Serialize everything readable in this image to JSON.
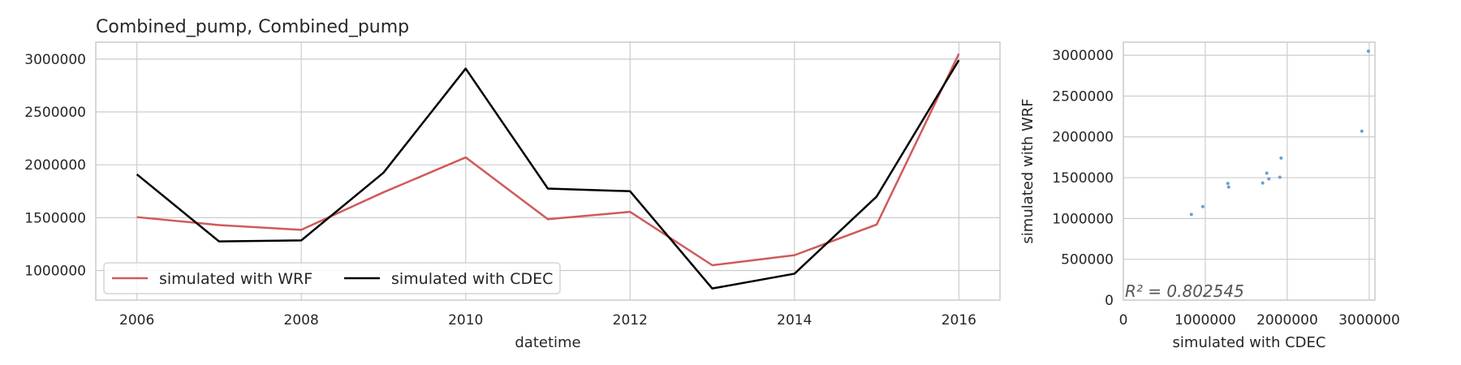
{
  "chart_data": [
    {
      "type": "line",
      "title": "Combined_pump, Combined_pump",
      "xlabel": "datetime",
      "ylabel": "",
      "x": [
        2006,
        2007,
        2008,
        2009,
        2010,
        2011,
        2012,
        2013,
        2014,
        2015,
        2016
      ],
      "xlim": [
        2005.5,
        2016.5
      ],
      "ylim": [
        720000,
        3160000
      ],
      "xticks": [
        "2006",
        "2008",
        "2010",
        "2012",
        "2014",
        "2016"
      ],
      "yticks": [
        "1000000",
        "1500000",
        "2000000",
        "2500000",
        "3000000"
      ],
      "grid": true,
      "legend_position": "lower-left",
      "series": [
        {
          "name": "simulated with WRF",
          "color": "#d05a5a",
          "values": [
            1505000,
            1430000,
            1385000,
            1740000,
            2070000,
            1485000,
            1555000,
            1050000,
            1145000,
            1435000,
            3050000
          ]
        },
        {
          "name": "simulated with CDEC",
          "color": "#000000",
          "values": [
            1910000,
            1275000,
            1285000,
            1925000,
            2910000,
            1775000,
            1750000,
            830000,
            970000,
            1700000,
            2990000
          ]
        }
      ]
    },
    {
      "type": "scatter",
      "title": "",
      "xlabel": "simulated with CDEC",
      "ylabel": "simulated with WRF",
      "xlim": [
        0,
        3070000
      ],
      "ylim": [
        0,
        3160000
      ],
      "xticks": [
        "0",
        "1000000",
        "2000000",
        "3000000"
      ],
      "yticks": [
        "0",
        "500000",
        "1000000",
        "1500000",
        "2000000",
        "2500000",
        "3000000"
      ],
      "grid": true,
      "point_color": "#6a9fcf",
      "annotation": "R² = 0.802545",
      "x": [
        830000,
        970000,
        1275000,
        1285000,
        1700000,
        1750000,
        1775000,
        1910000,
        1925000,
        2910000,
        2990000
      ],
      "y": [
        1050000,
        1145000,
        1430000,
        1385000,
        1435000,
        1555000,
        1485000,
        1505000,
        1740000,
        2070000,
        3050000
      ]
    }
  ]
}
